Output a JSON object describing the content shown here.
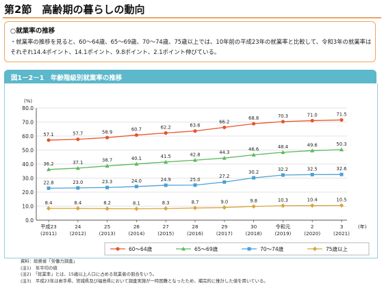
{
  "header": {
    "section": "第2節　高齢期の暮らしの動向"
  },
  "summary": {
    "heading": "○就業率の推移",
    "text": "・就業率の推移を見ると、60～64歳、65～69歳、70～74歳、75歳以上では、10年前の平成23年の就業率と比較して、令和3年の就業率はそれぞれ14.4ポイント、14.1ポイント、9.8ポイント、2.1ポイント伸びている。"
  },
  "figure": {
    "title": "図1－2－1　年齢階級別就業率の推移"
  },
  "chart_data": {
    "type": "line",
    "title": "",
    "ylabel": "(%)",
    "xlabel": "(年)",
    "ylim": [
      0,
      80
    ],
    "yticks": [
      "0.0",
      "10.0",
      "20.0",
      "30.0",
      "40.0",
      "50.0",
      "60.0",
      "70.0",
      "80.0"
    ],
    "grid": true,
    "legend_position": "bottom",
    "categories": [
      "平成23",
      "24",
      "25",
      "26",
      "27",
      "28",
      "29",
      "30",
      "令和元",
      "2",
      "3"
    ],
    "categories_sub": [
      "(2011)",
      "(2012)",
      "(2013)",
      "(2014)",
      "(2015)",
      "(2016)",
      "(2017)",
      "(2018)",
      "(2019)",
      "(2020)",
      "(2021)"
    ],
    "series": [
      {
        "name": "60～64歳",
        "color": "#e8542a",
        "marker": "circle",
        "values": [
          57.1,
          57.7,
          58.9,
          60.7,
          62.2,
          63.6,
          66.2,
          68.8,
          70.3,
          71.0,
          71.5
        ]
      },
      {
        "name": "65～69歳",
        "color": "#5cb85c",
        "marker": "triangle",
        "values": [
          36.2,
          37.1,
          38.7,
          40.1,
          41.5,
          42.8,
          44.3,
          46.6,
          48.4,
          49.6,
          50.3
        ]
      },
      {
        "name": "70～74歳",
        "color": "#4a9fd6",
        "marker": "square",
        "values": [
          22.8,
          23.0,
          23.3,
          24.0,
          24.9,
          25.0,
          27.2,
          30.2,
          32.2,
          32.5,
          32.6
        ]
      },
      {
        "name": "75歳以上",
        "color": "#d9a43a",
        "marker": "diamond",
        "values": [
          8.4,
          8.4,
          8.2,
          8.1,
          8.3,
          8.7,
          9.0,
          9.8,
          10.3,
          10.4,
          10.5
        ]
      }
    ]
  },
  "notes": [
    "資料：総務省「労働力調査」",
    "(注1)　年平均の値",
    "(注2)　「就業率」とは、15歳以上人口に占める就業者の割合をいう。",
    "(注3)　平成23年は岩手県、宮城県及び福島県において調査実施が一時困難となったため、補完的に推計した値を用いている。"
  ]
}
